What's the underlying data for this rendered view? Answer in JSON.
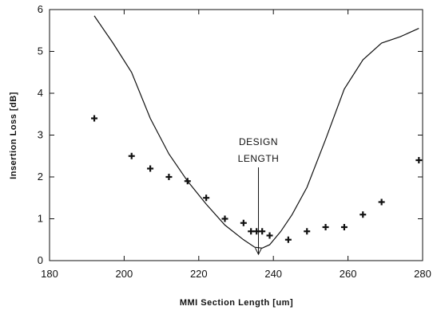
{
  "chart_data": {
    "type": "scatter",
    "title": "",
    "xlabel": "MMI Section Length [um]",
    "ylabel": "Insertion Loss [dB]",
    "xlim": [
      180,
      280
    ],
    "ylim": [
      0,
      6
    ],
    "xticks": [
      180,
      200,
      220,
      240,
      260,
      280
    ],
    "yticks": [
      0,
      1,
      2,
      3,
      4,
      5,
      6
    ],
    "grid": false,
    "legend": "none",
    "series": [
      {
        "kind": "line",
        "x": [
          192,
          197,
          202,
          207,
          212,
          217,
          222,
          227,
          232,
          235,
          237,
          239,
          242,
          245,
          249,
          254,
          259,
          264,
          269,
          274,
          279
        ],
        "y": [
          5.85,
          5.2,
          4.5,
          3.4,
          2.55,
          1.9,
          1.35,
          0.85,
          0.5,
          0.32,
          0.3,
          0.38,
          0.7,
          1.1,
          1.75,
          2.9,
          4.1,
          4.8,
          5.2,
          5.35,
          5.55
        ]
      },
      {
        "kind": "points",
        "marker": "+",
        "x": [
          192,
          202,
          207,
          212,
          217,
          222,
          227,
          232,
          234,
          235.5,
          237,
          239,
          244,
          249,
          254,
          259,
          264,
          269,
          279
        ],
        "y": [
          3.4,
          2.5,
          2.2,
          2.0,
          1.9,
          1.5,
          1.0,
          0.9,
          0.7,
          0.7,
          0.7,
          0.6,
          0.5,
          0.7,
          0.8,
          0.8,
          1.1,
          1.4,
          2.4
        ]
      }
    ],
    "annotations": [
      {
        "line1": "DESIGN",
        "line2": "LENGTH",
        "x": 236,
        "y": 0.15
      }
    ]
  }
}
